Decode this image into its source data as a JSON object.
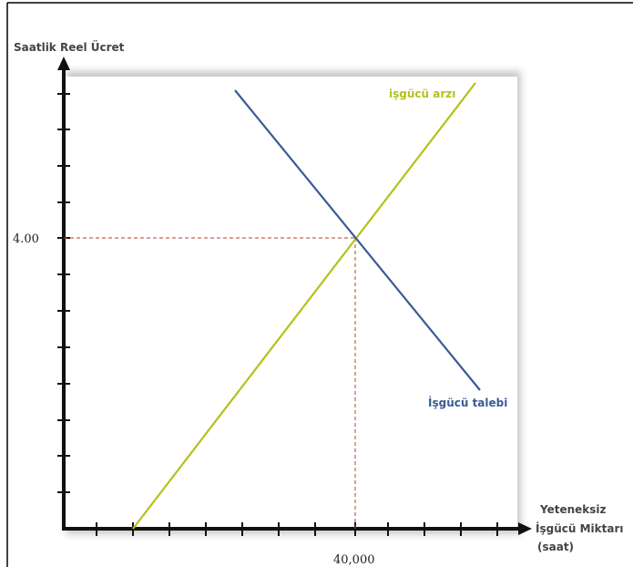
{
  "chart_data": {
    "type": "line",
    "ylabel": "Saatlik Reel Ücret",
    "xlabel_lines": [
      "Yeteneksiz",
      "İşgücü Miktarı",
      "(saat)"
    ],
    "equilibrium": {
      "x_label": "40,000",
      "y_label": "4.00"
    },
    "series": [
      {
        "name": "işgücü arzı",
        "color": "#b5c11a"
      },
      {
        "name": "İşgücü talebi",
        "color": "#3a5a98"
      }
    ],
    "guide_color": "#c0392b",
    "plot_background": "#ffffff",
    "plot_shadow": "#c8c8c8"
  }
}
